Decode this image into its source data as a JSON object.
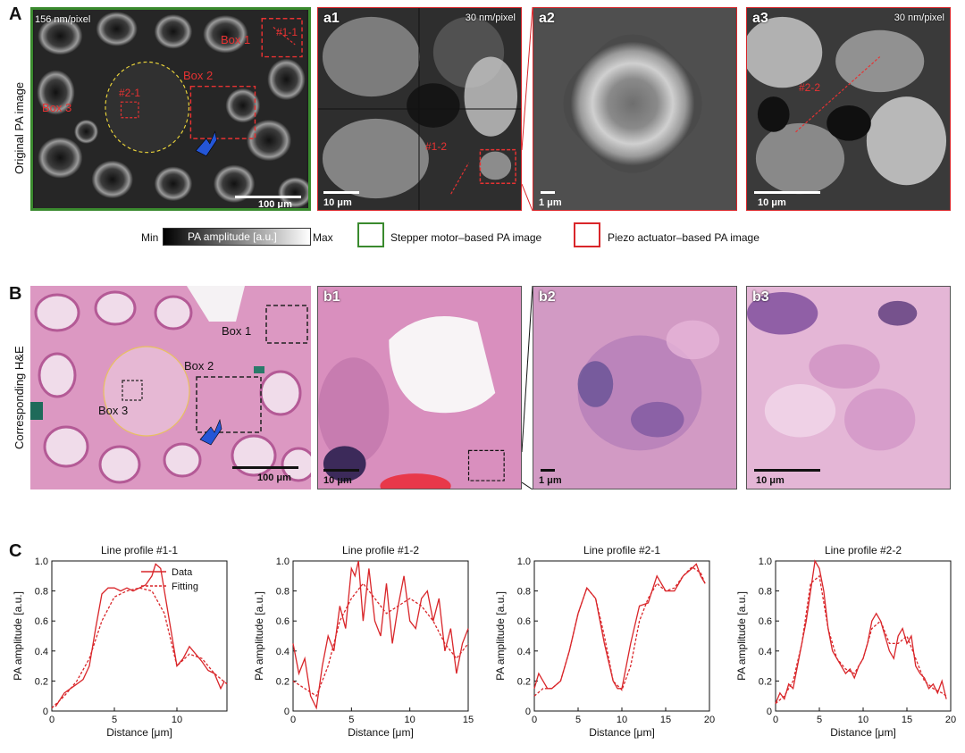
{
  "row_a": {
    "letter": "A",
    "side_label": "Original PA image",
    "main": {
      "resolution": "156 nm/pixel",
      "scale": "100 μm",
      "box1": "Box 1",
      "box2": "Box 2",
      "box3": "Box 3",
      "line_1_1": "#1-1",
      "line_2_1": "#2-1"
    },
    "a1": {
      "label": "a1",
      "resolution": "30 nm/pixel",
      "scale": "10 μm",
      "line": "#1-2"
    },
    "a2": {
      "label": "a2",
      "scale": "1 μm"
    },
    "a3": {
      "label": "a3",
      "resolution": "30 nm/pixel",
      "scale": "10 μm",
      "line": "#2-2"
    }
  },
  "legend": {
    "min": "Min",
    "bar_label": "PA amplitude [a.u.]",
    "max": "Max",
    "green": "Stepper motor–based PA image",
    "red": "Piezo actuator–based PA image",
    "green_color": "#3a8a2e",
    "red_color": "#d9262a"
  },
  "row_b": {
    "letter": "B",
    "side_label": "Corresponding H&E",
    "main": {
      "scale": "100 μm",
      "box1": "Box 1",
      "box2": "Box 2",
      "box3": "Box 3"
    },
    "b1": {
      "label": "b1",
      "scale": "10 μm"
    },
    "b2": {
      "label": "b2",
      "scale": "1 μm"
    },
    "b3": {
      "label": "b3",
      "scale": "10 μm"
    }
  },
  "row_c": {
    "letter": "C"
  },
  "chart_data": [
    {
      "type": "line",
      "title": "Line profile #1-1",
      "xlabel": "Distance [μm]",
      "ylabel": "PA amplitude [a.u.]",
      "xlim": [
        0,
        14
      ],
      "ylim": [
        0,
        1
      ],
      "xticks": [
        0,
        5,
        10
      ],
      "yticks": [
        0,
        0.2,
        0.4,
        0.6,
        0.8,
        1.0
      ],
      "legend": {
        "data": "Data",
        "fitting": "Fitting",
        "position": "top-right"
      },
      "series": [
        {
          "name": "Data",
          "style": "solid",
          "x": [
            0.3,
            1,
            1.5,
            2,
            2.5,
            3,
            3.5,
            4,
            4.5,
            5,
            5.5,
            6,
            6.5,
            7,
            7.5,
            8,
            8.3,
            8.7,
            9,
            9.5,
            10,
            10.5,
            11,
            11.5,
            12,
            12.5,
            13,
            13.5,
            13.8
          ],
          "y": [
            0.03,
            0.12,
            0.15,
            0.18,
            0.21,
            0.3,
            0.55,
            0.78,
            0.82,
            0.82,
            0.8,
            0.82,
            0.8,
            0.82,
            0.84,
            0.9,
            0.98,
            0.95,
            0.8,
            0.55,
            0.3,
            0.35,
            0.43,
            0.38,
            0.33,
            0.27,
            0.25,
            0.15,
            0.2
          ]
        },
        {
          "name": "Fitting",
          "style": "dotted",
          "x": [
            0,
            1,
            2,
            3,
            4,
            5,
            6,
            7,
            8,
            9,
            10,
            11,
            12,
            13,
            14
          ],
          "y": [
            0.02,
            0.1,
            0.2,
            0.35,
            0.6,
            0.76,
            0.8,
            0.82,
            0.8,
            0.65,
            0.3,
            0.38,
            0.35,
            0.25,
            0.18
          ]
        }
      ]
    },
    {
      "type": "line",
      "title": "Line profile #1-2",
      "xlabel": "Distance [μm]",
      "ylabel": "PA amplitude [a.u.]",
      "xlim": [
        0,
        15
      ],
      "ylim": [
        0,
        1
      ],
      "xticks": [
        0,
        5,
        10,
        15
      ],
      "yticks": [
        0,
        0.2,
        0.4,
        0.6,
        0.8,
        1.0
      ],
      "series": [
        {
          "name": "Data",
          "style": "solid",
          "x": [
            0,
            0.5,
            1,
            1.5,
            2,
            2.5,
            3,
            3.5,
            4,
            4.5,
            5,
            5.3,
            5.6,
            6,
            6.5,
            7,
            7.5,
            8,
            8.5,
            9,
            9.5,
            10,
            10.5,
            11,
            11.5,
            12,
            12.5,
            13,
            13.5,
            14,
            14.5,
            15
          ],
          "y": [
            0.45,
            0.25,
            0.35,
            0.1,
            0.02,
            0.3,
            0.5,
            0.4,
            0.7,
            0.55,
            0.95,
            0.9,
            1.0,
            0.6,
            0.95,
            0.6,
            0.5,
            0.85,
            0.45,
            0.7,
            0.9,
            0.6,
            0.55,
            0.75,
            0.8,
            0.6,
            0.75,
            0.4,
            0.55,
            0.25,
            0.45,
            0.55
          ]
        },
        {
          "name": "Fitting",
          "style": "dotted",
          "x": [
            0,
            1,
            2,
            3,
            4,
            5,
            6,
            7,
            8,
            9,
            10,
            11,
            12,
            13,
            14,
            15
          ],
          "y": [
            0.2,
            0.15,
            0.1,
            0.3,
            0.6,
            0.75,
            0.85,
            0.75,
            0.65,
            0.7,
            0.75,
            0.7,
            0.6,
            0.45,
            0.35,
            0.45
          ]
        }
      ]
    },
    {
      "type": "line",
      "title": "Line profile #2-1",
      "xlabel": "Distance [μm]",
      "ylabel": "PA amplitude [a.u.]",
      "xlim": [
        0,
        20
      ],
      "ylim": [
        0,
        1
      ],
      "xticks": [
        0,
        5,
        10,
        15,
        20
      ],
      "yticks": [
        0,
        0.2,
        0.4,
        0.6,
        0.8,
        1.0
      ],
      "series": [
        {
          "name": "Data",
          "style": "solid",
          "x": [
            0,
            0.5,
            1,
            1.5,
            2,
            3,
            4,
            5,
            6,
            7,
            8,
            9,
            9.5,
            10,
            11,
            12,
            13,
            14,
            15,
            16,
            17,
            18,
            18.5,
            19,
            19.5
          ],
          "y": [
            0.15,
            0.25,
            0.2,
            0.15,
            0.15,
            0.2,
            0.4,
            0.65,
            0.82,
            0.75,
            0.45,
            0.2,
            0.15,
            0.15,
            0.45,
            0.7,
            0.72,
            0.9,
            0.8,
            0.8,
            0.9,
            0.95,
            0.98,
            0.9,
            0.85
          ]
        },
        {
          "name": "Fitting",
          "style": "dotted",
          "x": [
            0,
            1,
            2,
            3,
            4,
            5,
            6,
            7,
            8,
            9,
            10,
            11,
            12,
            13,
            14,
            15,
            16,
            17,
            18,
            19,
            19.5
          ],
          "y": [
            0.1,
            0.15,
            0.15,
            0.2,
            0.4,
            0.65,
            0.82,
            0.75,
            0.5,
            0.2,
            0.14,
            0.3,
            0.6,
            0.75,
            0.85,
            0.8,
            0.82,
            0.9,
            0.96,
            0.92,
            0.85
          ]
        }
      ]
    },
    {
      "type": "line",
      "title": "Line profile #2-2",
      "xlabel": "Distance [μm]",
      "ylabel": "PA amplitude [a.u.]",
      "xlim": [
        0,
        20
      ],
      "ylim": [
        0,
        1
      ],
      "xticks": [
        0,
        5,
        10,
        15,
        20
      ],
      "yticks": [
        0,
        0.2,
        0.4,
        0.6,
        0.8,
        1.0
      ],
      "series": [
        {
          "name": "Data",
          "style": "solid",
          "x": [
            0,
            0.5,
            1,
            1.5,
            2,
            2.5,
            3,
            3.5,
            4,
            4.5,
            5,
            5.5,
            6,
            6.5,
            7,
            7.5,
            8,
            8.5,
            9,
            9.5,
            10,
            10.5,
            11,
            11.5,
            12,
            12.5,
            13,
            13.5,
            14,
            14.5,
            15,
            15.5,
            16,
            16.5,
            17,
            17.5,
            18,
            18.5,
            19,
            19.5
          ],
          "y": [
            0.05,
            0.12,
            0.08,
            0.18,
            0.15,
            0.3,
            0.45,
            0.6,
            0.8,
            1.0,
            0.95,
            0.8,
            0.55,
            0.4,
            0.35,
            0.3,
            0.25,
            0.28,
            0.22,
            0.3,
            0.35,
            0.45,
            0.6,
            0.65,
            0.6,
            0.5,
            0.4,
            0.35,
            0.5,
            0.55,
            0.45,
            0.5,
            0.3,
            0.25,
            0.22,
            0.15,
            0.18,
            0.12,
            0.2,
            0.08
          ]
        },
        {
          "name": "Fitting",
          "style": "dotted",
          "x": [
            0,
            1,
            2,
            3,
            4,
            5,
            6,
            7,
            8,
            9,
            10,
            11,
            12,
            13,
            14,
            15,
            16,
            17,
            18,
            19,
            19.5
          ],
          "y": [
            0.05,
            0.1,
            0.2,
            0.45,
            0.85,
            0.9,
            0.55,
            0.35,
            0.28,
            0.25,
            0.35,
            0.55,
            0.6,
            0.45,
            0.45,
            0.5,
            0.35,
            0.2,
            0.15,
            0.12,
            0.1
          ]
        }
      ]
    }
  ]
}
